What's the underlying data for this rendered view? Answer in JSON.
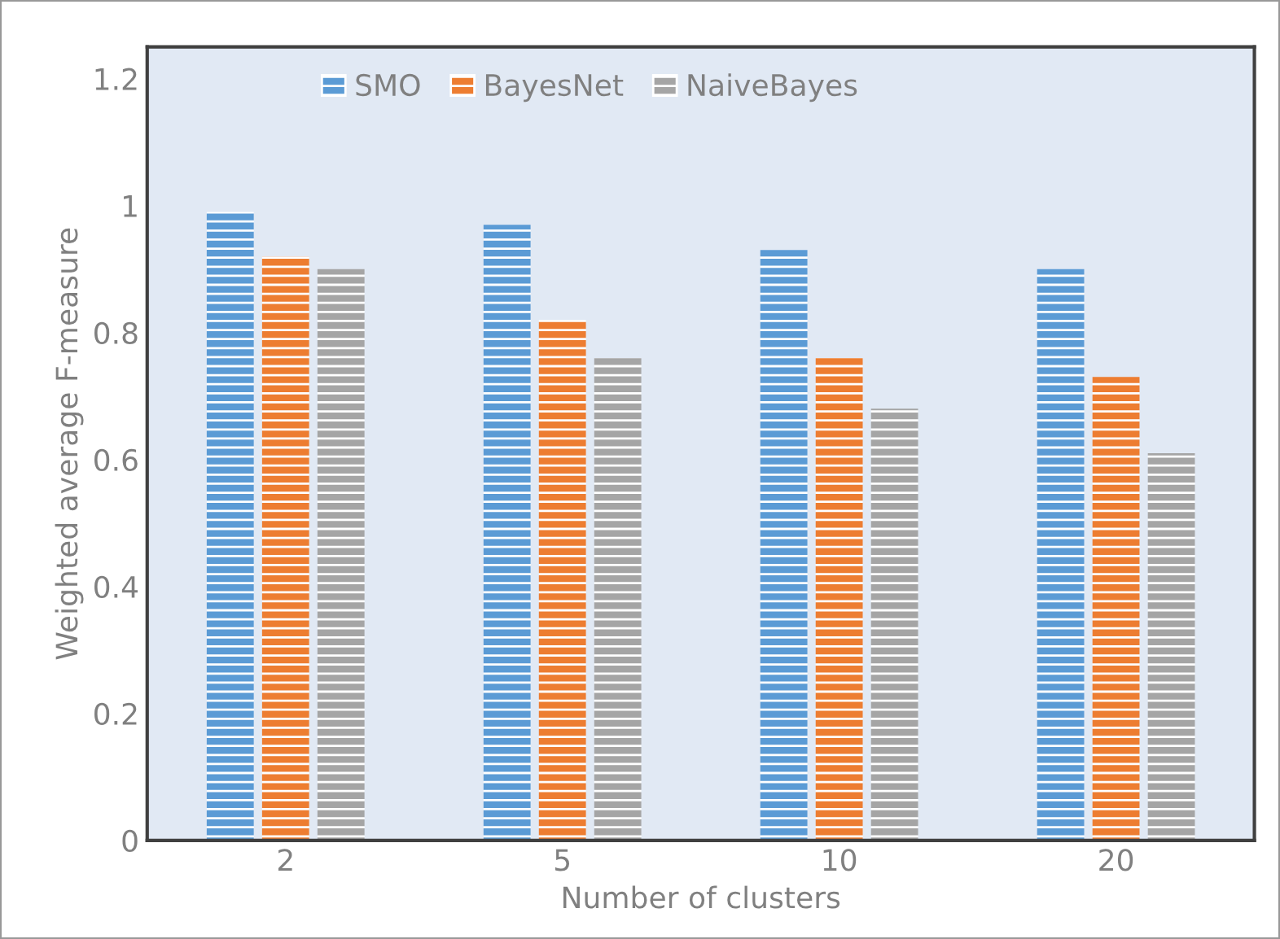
{
  "chart_data": {
    "type": "bar",
    "xlabel": "Number of clusters",
    "ylabel": "Weighted average F-measure",
    "categories": [
      "2",
      "5",
      "10",
      "20"
    ],
    "series": [
      {
        "name": "SMO",
        "color": "#5b9bd5",
        "values": [
          0.99,
          0.97,
          0.93,
          0.9
        ]
      },
      {
        "name": "BayesNet",
        "color": "#ed7d31",
        "values": [
          0.92,
          0.82,
          0.76,
          0.73
        ]
      },
      {
        "name": "NaiveBayes",
        "color": "#a5a5a5",
        "values": [
          0.9,
          0.76,
          0.68,
          0.61
        ]
      }
    ],
    "ylim": [
      0,
      1.25
    ],
    "yticks": [
      0,
      0.2,
      0.4,
      0.6,
      0.8,
      1,
      1.2
    ],
    "grid": false,
    "legend": "top"
  }
}
